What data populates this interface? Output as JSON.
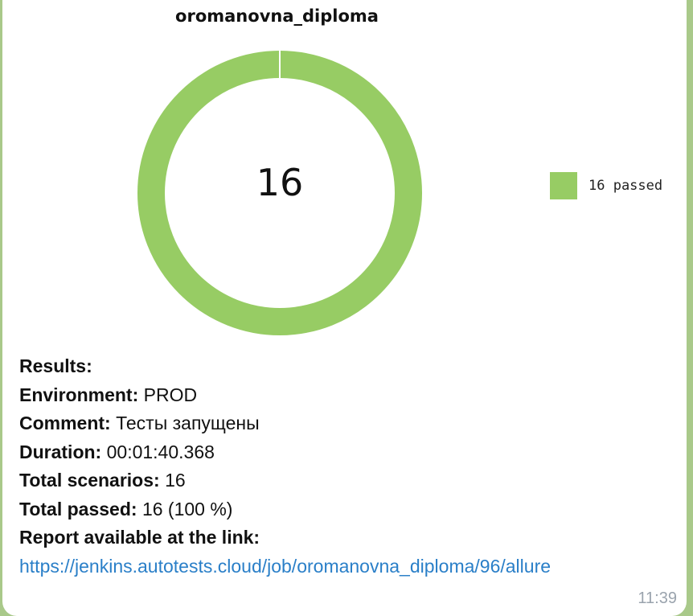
{
  "chart_data": {
    "type": "pie",
    "title": "oromanovna_diploma",
    "center_label": "16",
    "labels": [
      "16 passed"
    ],
    "values": [
      16
    ],
    "colors": [
      "#97cc64"
    ],
    "legend_position": "right"
  },
  "message": {
    "results_label": "Results:",
    "environment_label": "Environment:",
    "environment_value": "PROD",
    "comment_label": "Comment:",
    "comment_value": "Тесты запущены",
    "duration_label": "Duration:",
    "duration_value": "00:01:40.368",
    "total_scenarios_label": "Total scenarios:",
    "total_scenarios_value": "16",
    "total_passed_label": "Total passed:",
    "total_passed_value": "16 (100 %)",
    "report_label": "Report available at the link:",
    "report_link": "https://jenkins.autotests.cloud/job/oromanovna_diploma/96/allure",
    "time": "11:39"
  }
}
